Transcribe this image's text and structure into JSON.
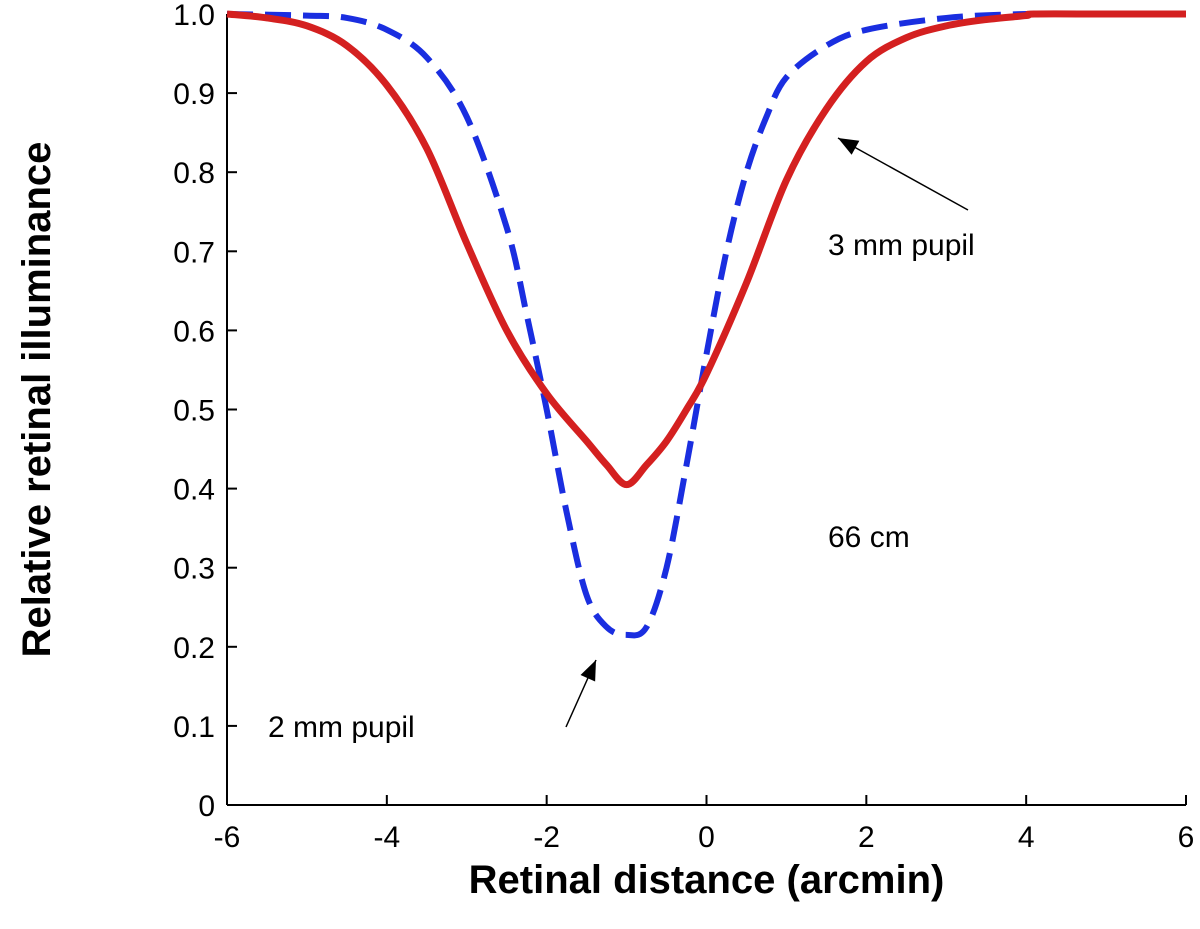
{
  "chart_data": {
    "type": "line",
    "title": "",
    "xlabel": "Retinal distance (arcmin)",
    "ylabel": "Relative retinal illuminance",
    "xlim": [
      -6,
      6
    ],
    "ylim": [
      0,
      1.0
    ],
    "xticks": [
      -6,
      -4,
      -2,
      0,
      2,
      4,
      6
    ],
    "xtick_labels": [
      "-6",
      "-4",
      "-2",
      "0",
      "2",
      "4",
      "6"
    ],
    "yticks": [
      0,
      0.1,
      0.2,
      0.3,
      0.4,
      0.5,
      0.6,
      0.7,
      0.8,
      0.9,
      1.0
    ],
    "ytick_labels": [
      "0",
      "0.1",
      "0.2",
      "0.3",
      "0.4",
      "0.5",
      "0.6",
      "0.7",
      "0.8",
      "0.9",
      "1.0"
    ],
    "grid": false,
    "series": [
      {
        "name": "3 mm pupil",
        "color": "#d42020",
        "style": "solid",
        "x": [
          -6,
          -5.5,
          -5,
          -4.5,
          -4,
          -3.5,
          -3,
          -2.5,
          -2,
          -1.5,
          -1.25,
          -1,
          -0.75,
          -0.5,
          -0.25,
          0,
          0.5,
          1,
          1.5,
          2,
          2.5,
          3,
          3.5,
          4,
          4.1,
          5,
          6
        ],
        "y": [
          1.0,
          0.995,
          0.985,
          0.96,
          0.91,
          0.83,
          0.71,
          0.6,
          0.52,
          0.46,
          0.43,
          0.405,
          0.43,
          0.46,
          0.5,
          0.545,
          0.66,
          0.79,
          0.88,
          0.94,
          0.97,
          0.985,
          0.993,
          0.998,
          1.0,
          1.0,
          1.0
        ]
      },
      {
        "name": "2 mm pupil",
        "color": "#1a2ee0",
        "style": "dashed",
        "x": [
          -6,
          -5,
          -4.5,
          -4,
          -3.5,
          -3,
          -2.5,
          -2.25,
          -2,
          -1.75,
          -1.5,
          -1.25,
          -1,
          -0.75,
          -0.5,
          -0.25,
          0,
          0.25,
          0.5,
          0.75,
          1,
          1.5,
          2,
          3,
          4,
          5,
          6
        ],
        "y": [
          1.0,
          0.998,
          0.995,
          0.98,
          0.945,
          0.87,
          0.73,
          0.62,
          0.5,
          0.37,
          0.265,
          0.225,
          0.215,
          0.225,
          0.3,
          0.43,
          0.57,
          0.7,
          0.8,
          0.87,
          0.92,
          0.96,
          0.98,
          0.995,
          1.0,
          1.0,
          1.0
        ]
      }
    ],
    "annotations": [
      {
        "text": "3 mm pupil",
        "x": 2.8,
        "y": 0.72
      },
      {
        "text": "2 mm pupil",
        "x": -3.2,
        "y": 0.08
      },
      {
        "text": "66 cm",
        "x": 2.8,
        "y": 0.33
      }
    ]
  }
}
